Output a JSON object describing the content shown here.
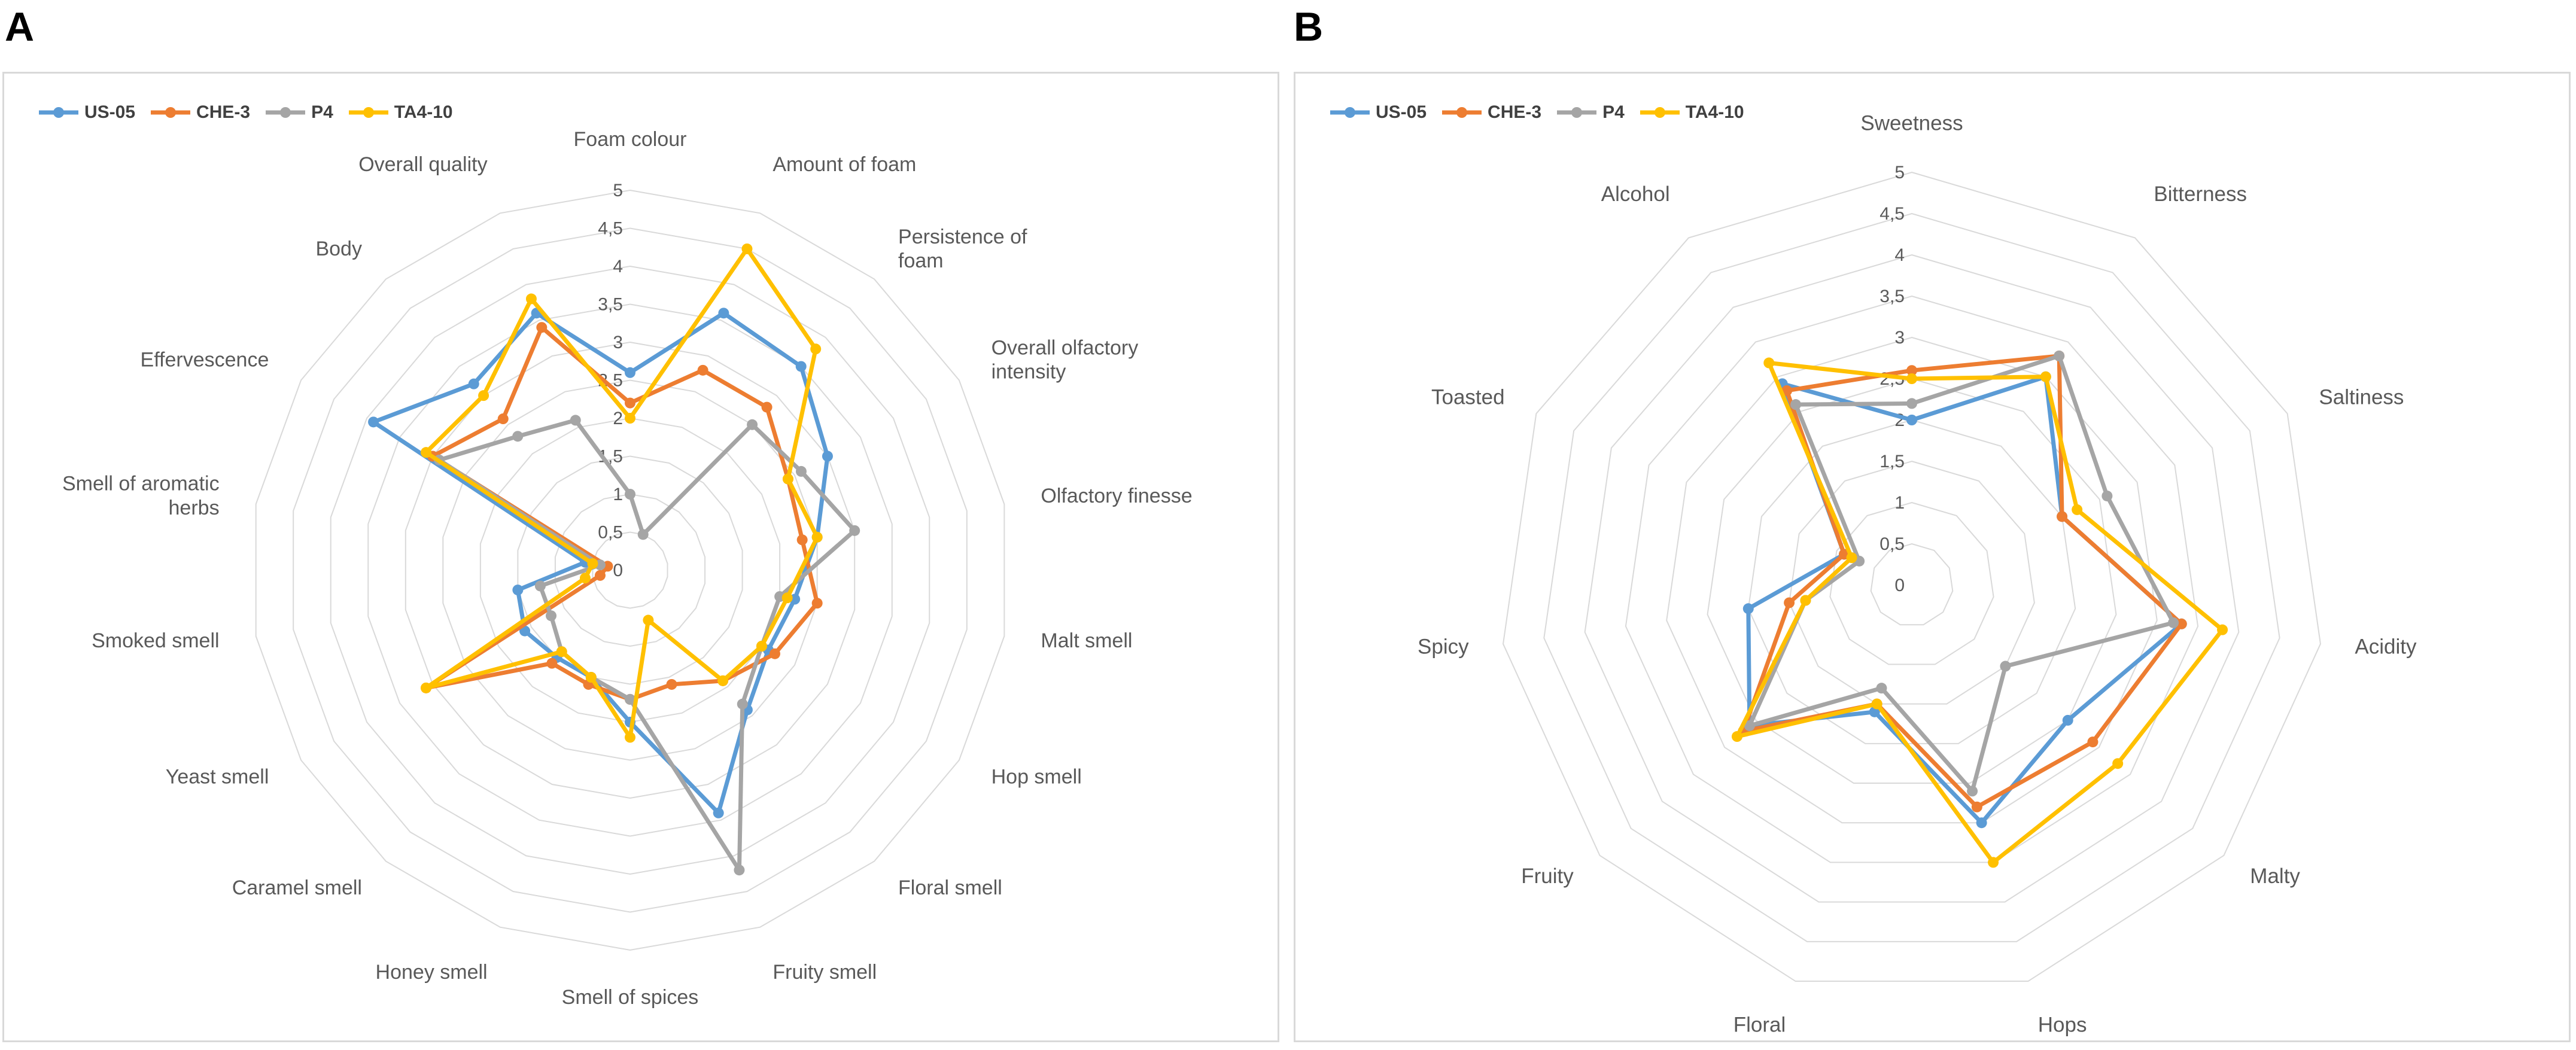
{
  "panels": [
    {
      "letter": "A"
    },
    {
      "letter": "B"
    }
  ],
  "series_colors": {
    "US-05": "#5b9bd5",
    "CHE-3": "#ed7d31",
    "P4": "#a5a5a5",
    "TA4-10": "#ffc000"
  },
  "chart_data": [
    {
      "type": "radar",
      "panel": "A",
      "scale_min": 0,
      "scale_max": 5,
      "scale_step": 0.5,
      "tick_labels": [
        "0",
        "0,5",
        "1",
        "1,5",
        "2",
        "2,5",
        "3",
        "3,5",
        "4",
        "4,5",
        "5"
      ],
      "legend": [
        "US-05",
        "CHE-3",
        "P4",
        "TA4-10"
      ],
      "legend_position": "top-left",
      "categories": [
        "Foam colour",
        "Amount of foam",
        "Persistence of foam",
        "Overall olfactory intensity",
        "Olfactory finesse",
        "Malt smell",
        "Hop smell",
        "Floral smell",
        "Fruity smell",
        "Smell of spices",
        "Honey smell",
        "Caramel smell",
        "Yeast smell",
        "Smoked smell",
        "Smell of aromatic herbs",
        "Effervescence",
        "Body",
        "Overall quality"
      ],
      "series": [
        {
          "name": "US-05",
          "values": [
            2.6,
            3.6,
            3.5,
            3.0,
            2.5,
            2.2,
            2.1,
            2.4,
            3.4,
            2.0,
            1.5,
            1.5,
            1.6,
            1.5,
            0.6,
            3.9,
            3.2,
            3.6
          ]
        },
        {
          "name": "CHE-3",
          "values": [
            2.2,
            2.8,
            2.8,
            2.4,
            2.3,
            2.5,
            2.2,
            1.9,
            1.6,
            1.7,
            1.6,
            1.6,
            3.1,
            0.4,
            0.3,
            3.0,
            2.6,
            3.4
          ]
        },
        {
          "name": "P4",
          "values": [
            1.0,
            0.5,
            2.5,
            2.6,
            3.0,
            2.0,
            2.0,
            2.3,
            4.2,
            1.7,
            1.5,
            1.4,
            1.2,
            1.2,
            0.4,
            2.9,
            2.3,
            2.1
          ]
        },
        {
          "name": "TA4-10",
          "values": [
            2.0,
            4.5,
            3.8,
            2.4,
            2.5,
            2.1,
            2.0,
            1.9,
            0.7,
            2.2,
            1.5,
            1.4,
            3.1,
            0.6,
            0.5,
            3.1,
            3.0,
            3.8
          ]
        }
      ]
    },
    {
      "type": "radar",
      "panel": "B",
      "scale_min": 0,
      "scale_max": 5,
      "scale_step": 0.5,
      "tick_labels": [
        "0",
        "0,5",
        "1",
        "1,5",
        "2",
        "2,5",
        "3",
        "3,5",
        "4",
        "4,5",
        "5"
      ],
      "legend": [
        "US-05",
        "CHE-3",
        "P4",
        "TA4-10"
      ],
      "legend_position": "top-left",
      "categories": [
        "Sweetness",
        "Bitterness",
        "Saltiness",
        "Acidity",
        "Malty",
        "Hops",
        "Floral",
        "Fruity",
        "Spicy",
        "Toasted",
        "Alcohol"
      ],
      "series": [
        {
          "name": "US-05",
          "values": [
            2.0,
            3.0,
            2.0,
            3.3,
            2.5,
            3.0,
            1.6,
            2.6,
            2.0,
            0.9,
            2.9
          ]
        },
        {
          "name": "CHE-3",
          "values": [
            2.6,
            3.3,
            2.0,
            3.3,
            2.9,
            2.8,
            1.5,
            2.7,
            1.5,
            0.9,
            2.8
          ]
        },
        {
          "name": "P4",
          "values": [
            2.2,
            3.3,
            2.6,
            3.2,
            1.5,
            2.6,
            1.3,
            2.6,
            1.3,
            0.7,
            2.6
          ]
        },
        {
          "name": "TA4-10",
          "values": [
            2.5,
            3.0,
            2.2,
            3.8,
            3.3,
            3.5,
            1.5,
            2.8,
            1.3,
            0.8,
            3.2
          ]
        }
      ]
    }
  ]
}
